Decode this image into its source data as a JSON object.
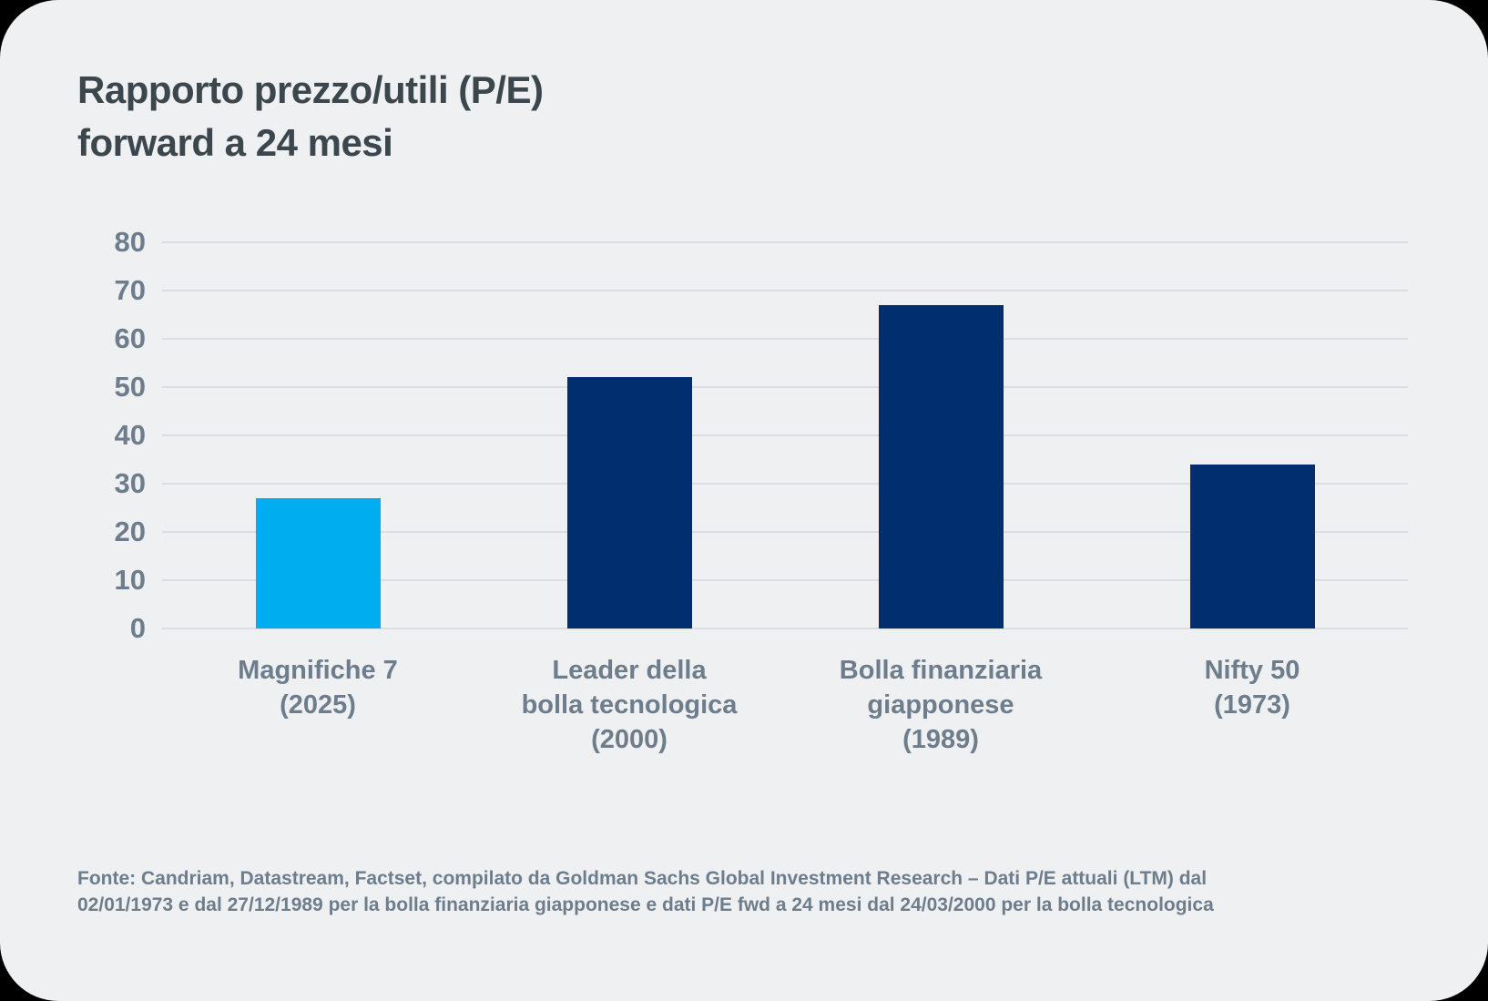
{
  "title": "Rapporto prezzo/utili (P/E)\nforward a 24 mesi",
  "chart_data": {
    "type": "bar",
    "title": "Rapporto prezzo/utili (P/E) forward a 24 mesi",
    "categories": [
      "Magnifiche 7\n(2025)",
      "Leader della\nbolla tecnologica\n(2000)",
      "Bolla finanziaria\ngiapponese\n(1989)",
      "Nifty 50\n(1973)"
    ],
    "values": [
      27,
      52,
      67,
      34
    ],
    "bar_colors": [
      "#00AEEF",
      "#002E6E",
      "#002E6E",
      "#002E6E"
    ],
    "yticks": [
      80,
      70,
      60,
      50,
      40,
      30,
      20,
      10,
      0
    ],
    "ylim": [
      0,
      80
    ],
    "xlabel": "",
    "ylabel": "",
    "grid": "horizontal",
    "legend": "none"
  },
  "footer": "Fonte: Candriam, Datastream, Factset, compilato da Goldman Sachs Global Investment Research – Dati P/E attuali (LTM) dal\n02/01/1973 e dal 27/12/1989 per la bolla finanziaria giapponese e dati P/E fwd a 24 mesi dal 24/03/2000 per la bolla tecnologica",
  "colors": {
    "card_background": "#EEF0F2",
    "page_background": "#000000",
    "title_text": "#3B474C",
    "axis_text": "#6E7D8C",
    "gridline": "#DBDDE0",
    "bar_highlight": "#00AEEF",
    "bar_default": "#002E6E"
  }
}
